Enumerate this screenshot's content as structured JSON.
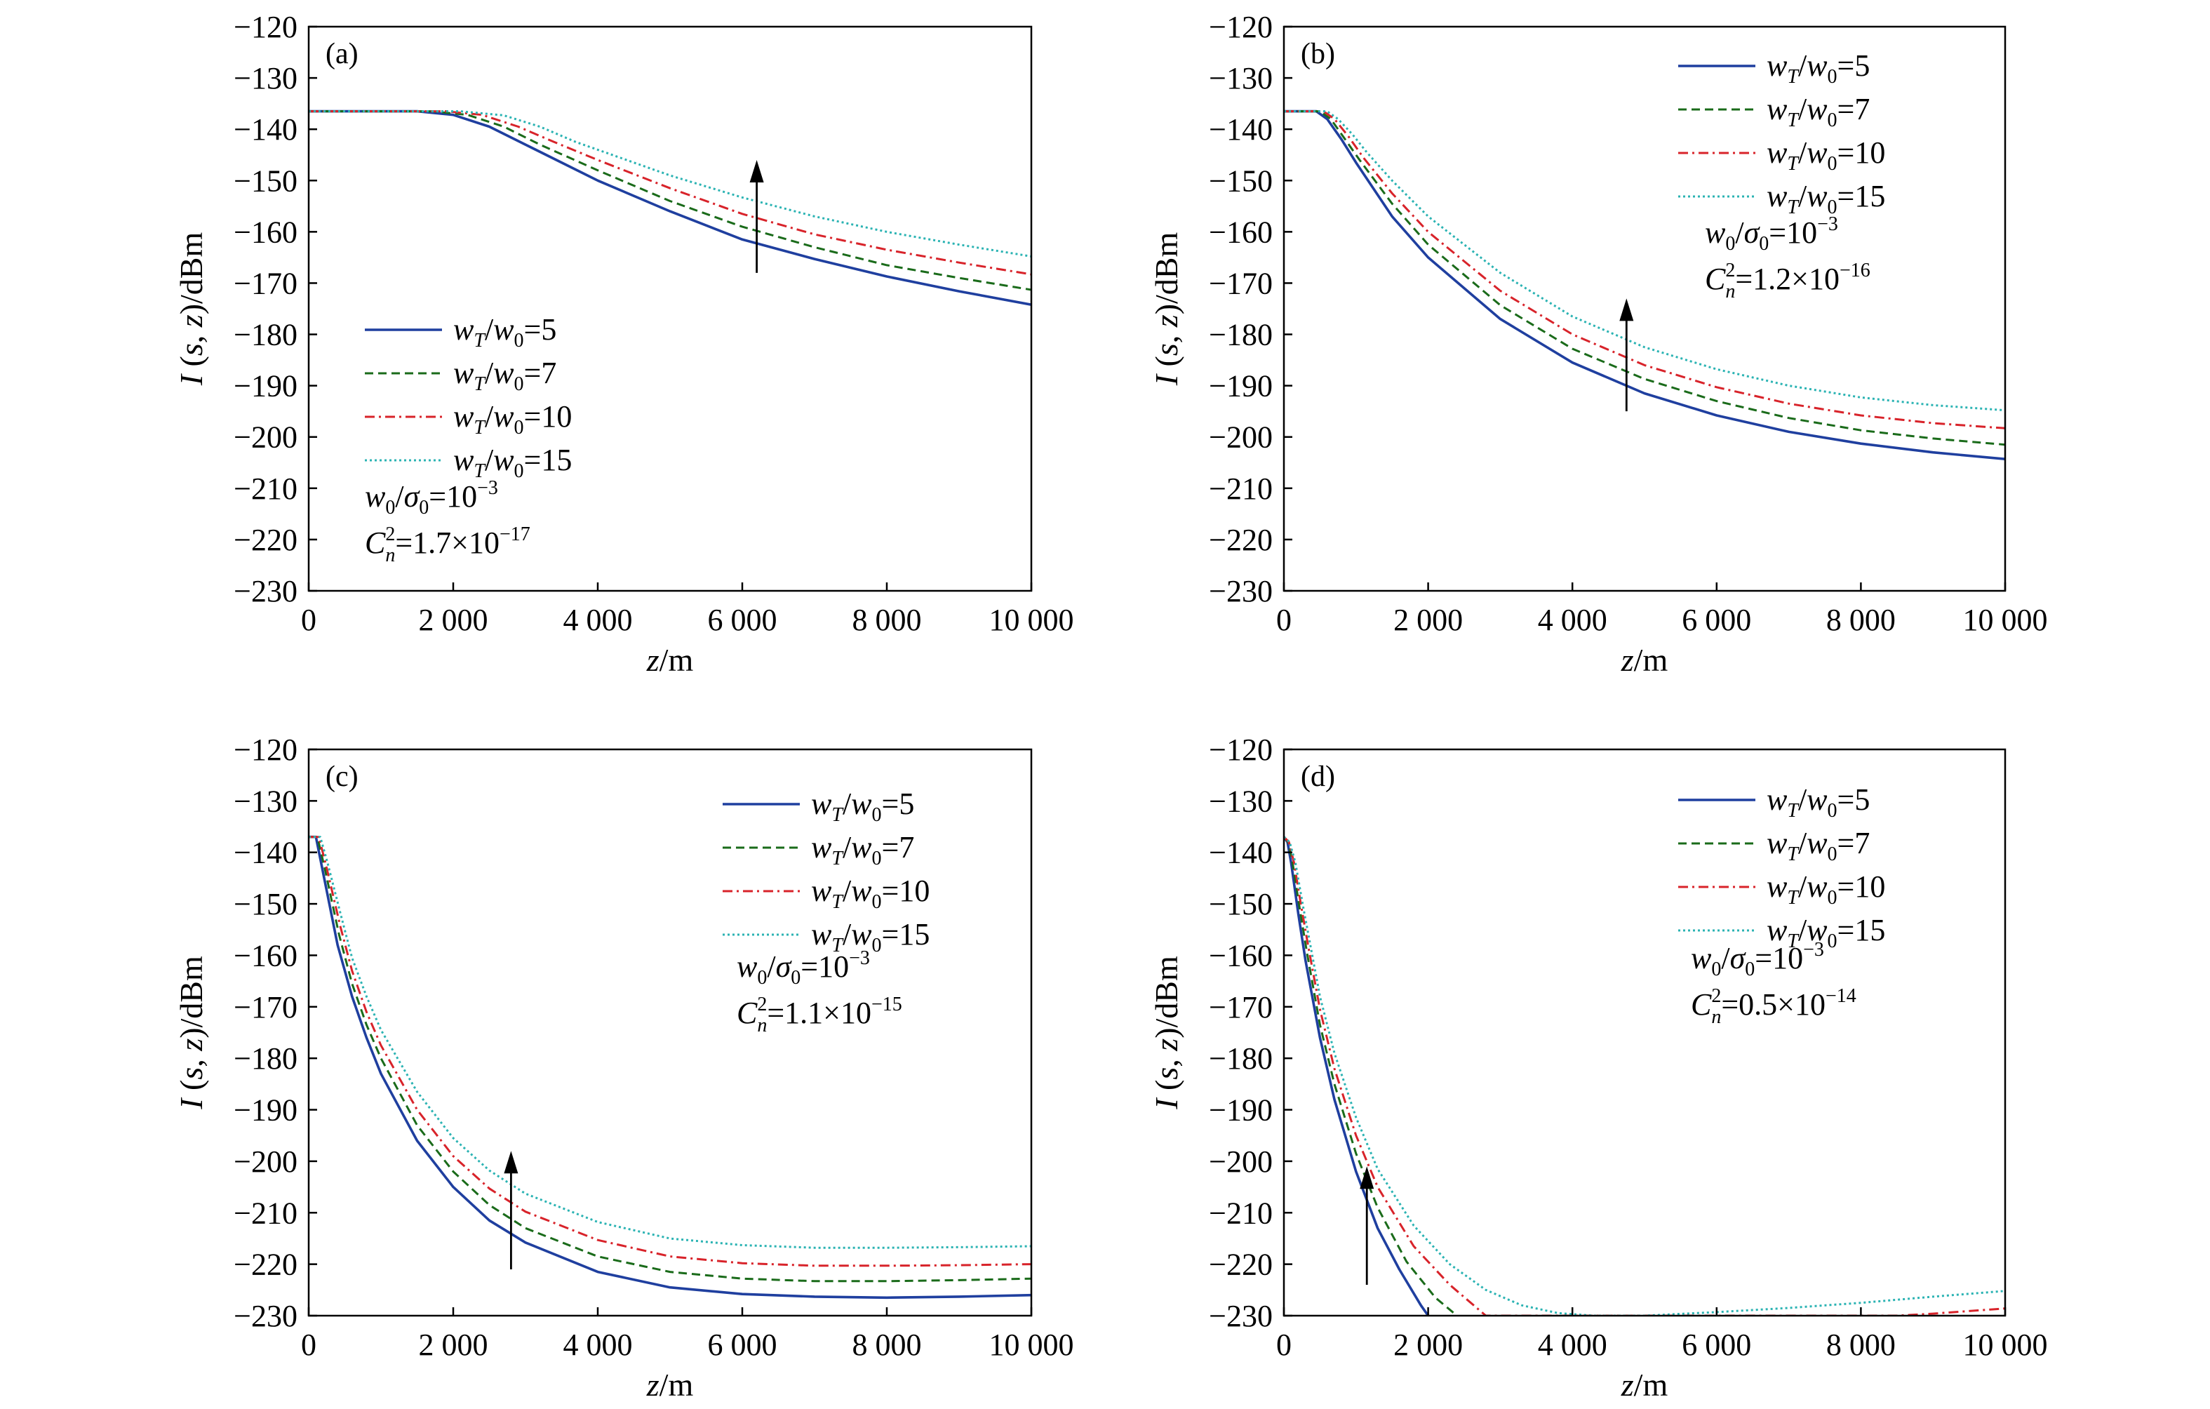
{
  "colors": {
    "s5": "#1f3f9f",
    "s7": "#1a6b1a",
    "s10": "#d8232a",
    "s15": "#2bb3b3"
  },
  "chart_data": [
    {
      "type": "line",
      "panel_label": "(a)",
      "xlabel_var": "z",
      "xlabel_unit": "/m",
      "ylabel_var": "I",
      "ylabel_args": "(s, z)",
      "ylabel_unit": "/dBm",
      "xlim": [
        0,
        10000
      ],
      "ylim": [
        -230,
        -120
      ],
      "xticks": [
        0,
        2000,
        4000,
        6000,
        8000,
        10000
      ],
      "xticklabels": [
        "0",
        "2 000",
        "4 000",
        "6 000",
        "8 000",
        "10 000"
      ],
      "yticks": [
        -120,
        -130,
        -140,
        -150,
        -160,
        -170,
        -180,
        -190,
        -200,
        -210,
        -220,
        -230
      ],
      "yticklabels": [
        "−120",
        "−130",
        "−140",
        "−150",
        "−160",
        "−170",
        "−180",
        "−190",
        "−200",
        "−210",
        "−220",
        "−230"
      ],
      "legend_position": "middle-left",
      "params": {
        "line1": "w0/σ0=10⁻³",
        "line2": "Cn²=1.7×10⁻¹⁷"
      },
      "arrow": {
        "x": 6200,
        "y_from": -168,
        "y_to": -146
      },
      "series": [
        {
          "name": "wT/w0=5",
          "style": "solid",
          "color_key": "s5",
          "x": [
            0,
            1500,
            2000,
            2500,
            3000,
            4000,
            5000,
            6000,
            7000,
            8000,
            9000,
            10000
          ],
          "y": [
            -136.5,
            -136.5,
            -137.2,
            -139.5,
            -143,
            -150,
            -156,
            -161.5,
            -165.3,
            -168.7,
            -171.6,
            -174.2
          ]
        },
        {
          "name": "wT/w0=7",
          "style": "dash",
          "color_key": "s7",
          "x": [
            0,
            1700,
            2200,
            2700,
            3200,
            4000,
            5000,
            6000,
            7000,
            8000,
            9000,
            10000
          ],
          "y": [
            -136.5,
            -136.5,
            -137.2,
            -139.5,
            -143,
            -148,
            -154,
            -159,
            -163,
            -166.5,
            -169,
            -171.3
          ]
        },
        {
          "name": "wT/w0=10",
          "style": "dashdot",
          "color_key": "s10",
          "x": [
            0,
            1900,
            2400,
            2900,
            3400,
            4000,
            5000,
            6000,
            7000,
            8000,
            9000,
            10000
          ],
          "y": [
            -136.5,
            -136.5,
            -137.2,
            -139.5,
            -142.5,
            -146,
            -151.5,
            -156.5,
            -160.5,
            -163.5,
            -166,
            -168.3
          ]
        },
        {
          "name": "wT/w0=15",
          "style": "dot",
          "color_key": "s15",
          "x": [
            0,
            2100,
            2700,
            3200,
            3700,
            4000,
            5000,
            6000,
            7000,
            8000,
            9000,
            10000
          ],
          "y": [
            -136.5,
            -136.5,
            -137.3,
            -139.5,
            -142.5,
            -144,
            -149,
            -153.3,
            -157,
            -160,
            -162.5,
            -164.8
          ]
        }
      ]
    },
    {
      "type": "line",
      "panel_label": "(b)",
      "xlabel_var": "z",
      "xlabel_unit": "/m",
      "ylabel_var": "I",
      "ylabel_args": "(s, z)",
      "ylabel_unit": "/dBm",
      "xlim": [
        0,
        10000
      ],
      "ylim": [
        -230,
        -120
      ],
      "xticks": [
        0,
        2000,
        4000,
        6000,
        8000,
        10000
      ],
      "xticklabels": [
        "0",
        "2 000",
        "4 000",
        "6 000",
        "8 000",
        "10 000"
      ],
      "yticks": [
        -120,
        -130,
        -140,
        -150,
        -160,
        -170,
        -180,
        -190,
        -200,
        -210,
        -220,
        -230
      ],
      "yticklabels": [
        "−120",
        "−130",
        "−140",
        "−150",
        "−160",
        "−170",
        "−180",
        "−190",
        "−200",
        "−210",
        "−220",
        "−230"
      ],
      "legend_position": "top-right",
      "params": {
        "line1": "w0/σ0=10⁻³",
        "line2": "Cn²=1.2×10⁻¹⁶"
      },
      "arrow": {
        "x": 4750,
        "y_from": -195,
        "y_to": -173
      },
      "series": [
        {
          "name": "wT/w0=5",
          "style": "solid",
          "color_key": "s5",
          "x": [
            0,
            450,
            600,
            800,
            1000,
            1500,
            2000,
            3000,
            4000,
            5000,
            6000,
            7000,
            8000,
            9000,
            10000
          ],
          "y": [
            -136.5,
            -136.5,
            -138,
            -142,
            -146.5,
            -157,
            -165,
            -177,
            -185.5,
            -191.5,
            -195.8,
            -199,
            -201.3,
            -203,
            -204.3
          ]
        },
        {
          "name": "wT/w0=7",
          "style": "dash",
          "color_key": "s7",
          "x": [
            0,
            500,
            650,
            850,
            1050,
            1500,
            2000,
            3000,
            4000,
            5000,
            6000,
            7000,
            8000,
            9000,
            10000
          ],
          "y": [
            -136.5,
            -136.5,
            -138,
            -142,
            -146,
            -154.5,
            -162.5,
            -174.3,
            -182.8,
            -188.7,
            -193,
            -196.3,
            -198.7,
            -200.3,
            -201.5
          ]
        },
        {
          "name": "wT/w0=10",
          "style": "dashdot",
          "color_key": "s10",
          "x": [
            0,
            550,
            700,
            900,
            1100,
            1500,
            2000,
            3000,
            4000,
            5000,
            6000,
            7000,
            8000,
            9000,
            10000
          ],
          "y": [
            -136.5,
            -136.5,
            -138,
            -141.5,
            -145.5,
            -152.5,
            -160,
            -171.5,
            -180,
            -186,
            -190.3,
            -193.5,
            -195.8,
            -197.3,
            -198.3
          ]
        },
        {
          "name": "wT/w0=15",
          "style": "dot",
          "color_key": "s15",
          "x": [
            0,
            600,
            750,
            950,
            1150,
            1500,
            2000,
            3000,
            4000,
            5000,
            6000,
            7000,
            8000,
            9000,
            10000
          ],
          "y": [
            -136.5,
            -136.5,
            -138,
            -141,
            -144.5,
            -150,
            -157,
            -168,
            -176.5,
            -182.5,
            -186.8,
            -190,
            -192.3,
            -193.8,
            -194.8
          ]
        }
      ]
    },
    {
      "type": "line",
      "panel_label": "(c)",
      "xlabel_var": "z",
      "xlabel_unit": "/m",
      "ylabel_var": "I",
      "ylabel_args": "(s, z)",
      "ylabel_unit": "/dBm",
      "xlim": [
        0,
        10000
      ],
      "ylim": [
        -230,
        -120
      ],
      "xticks": [
        0,
        2000,
        4000,
        6000,
        8000,
        10000
      ],
      "xticklabels": [
        "0",
        "2 000",
        "4 000",
        "6 000",
        "8 000",
        "10 000"
      ],
      "yticks": [
        -120,
        -130,
        -140,
        -150,
        -160,
        -170,
        -180,
        -190,
        -200,
        -210,
        -220,
        -230
      ],
      "yticklabels": [
        "−120",
        "−130",
        "−140",
        "−150",
        "−160",
        "−170",
        "−180",
        "−190",
        "−200",
        "−210",
        "−220",
        "−230"
      ],
      "legend_position": "top-right",
      "params": {
        "line1": "w0/σ0=10⁻³",
        "line2": "Cn²=1.1×10⁻¹⁵"
      },
      "arrow": {
        "x": 2800,
        "y_from": -221,
        "y_to": -198
      },
      "series": [
        {
          "name": "wT/w0=5",
          "style": "solid",
          "color_key": "s5",
          "x": [
            0,
            100,
            200,
            300,
            400,
            600,
            800,
            1000,
            1500,
            2000,
            2500,
            3000,
            4000,
            5000,
            6000,
            7000,
            8000,
            9000,
            10000
          ],
          "y": [
            -137,
            -137,
            -144,
            -151,
            -158,
            -168,
            -176,
            -183,
            -196,
            -205,
            -211.5,
            -215.8,
            -221.5,
            -224.5,
            -225.8,
            -226.3,
            -226.5,
            -226.3,
            -226
          ]
        },
        {
          "name": "wT/w0=7",
          "style": "dash",
          "color_key": "s7",
          "x": [
            0,
            120,
            220,
            320,
            420,
            600,
            800,
            1000,
            1500,
            2000,
            2500,
            3000,
            4000,
            5000,
            6000,
            7000,
            8000,
            9000,
            10000
          ],
          "y": [
            -137,
            -137,
            -143,
            -149.5,
            -156,
            -165.5,
            -173.5,
            -180,
            -193,
            -202,
            -208.5,
            -213,
            -218.5,
            -221.5,
            -222.8,
            -223.3,
            -223.3,
            -223.1,
            -222.8
          ]
        },
        {
          "name": "wT/w0=10",
          "style": "dashdot",
          "color_key": "s10",
          "x": [
            0,
            140,
            240,
            340,
            440,
            600,
            800,
            1000,
            1500,
            2000,
            2500,
            3000,
            4000,
            5000,
            6000,
            7000,
            8000,
            9000,
            10000
          ],
          "y": [
            -137,
            -137,
            -142.5,
            -148.5,
            -154.5,
            -163,
            -171,
            -177.5,
            -190,
            -199,
            -205.3,
            -209.8,
            -215.3,
            -218.5,
            -219.8,
            -220.3,
            -220.3,
            -220.2,
            -220
          ]
        },
        {
          "name": "wT/w0=15",
          "style": "dot",
          "color_key": "s15",
          "x": [
            0,
            160,
            260,
            360,
            460,
            600,
            800,
            1000,
            1500,
            2000,
            2500,
            3000,
            4000,
            5000,
            6000,
            7000,
            8000,
            9000,
            10000
          ],
          "y": [
            -137,
            -137,
            -142,
            -147.5,
            -153,
            -160.5,
            -168,
            -174.5,
            -186.5,
            -195.5,
            -201.8,
            -206.3,
            -211.8,
            -215,
            -216.3,
            -216.8,
            -216.8,
            -216.7,
            -216.5
          ]
        }
      ]
    },
    {
      "type": "line",
      "panel_label": "(d)",
      "xlabel_var": "z",
      "xlabel_unit": "/m",
      "ylabel_var": "I",
      "ylabel_args": "(s, z)",
      "ylabel_unit": "/dBm",
      "xlim": [
        0,
        10000
      ],
      "ylim": [
        -230,
        -120
      ],
      "xticks": [
        0,
        2000,
        4000,
        6000,
        8000,
        10000
      ],
      "xticklabels": [
        "0",
        "2 000",
        "4 000",
        "6 000",
        "8 000",
        "10 000"
      ],
      "yticks": [
        -120,
        -130,
        -140,
        -150,
        -160,
        -170,
        -180,
        -190,
        -200,
        -210,
        -220,
        -230
      ],
      "yticklabels": [
        "−120",
        "−130",
        "−140",
        "−150",
        "−160",
        "−170",
        "−180",
        "−190",
        "−200",
        "−210",
        "−220",
        "−230"
      ],
      "legend_position": "top-right",
      "params": {
        "line1": "w0/σ0=10⁻³",
        "line2": "Cn²=0.5×10⁻¹⁴"
      },
      "arrow": {
        "x": 1150,
        "y_from": -224,
        "y_to": -201
      },
      "series": [
        {
          "name": "wT/w0=5",
          "style": "solid",
          "color_key": "s5",
          "x": [
            0,
            50,
            100,
            200,
            300,
            500,
            700,
            1000,
            1300,
            1600,
            1900,
            2000
          ],
          "y": [
            -137,
            -138,
            -142,
            -152,
            -161,
            -176,
            -188,
            -202,
            -213,
            -221,
            -228,
            -230
          ]
        },
        {
          "name": "wT/w0=7",
          "style": "dash",
          "color_key": "s7",
          "x": [
            0,
            60,
            120,
            220,
            320,
            500,
            700,
            1000,
            1300,
            1700,
            2100,
            2400
          ],
          "y": [
            -137,
            -138,
            -142,
            -151,
            -159.5,
            -173.5,
            -185,
            -198.5,
            -209,
            -219.5,
            -226.5,
            -230
          ]
        },
        {
          "name": "wT/w0=10",
          "style": "dashdot",
          "color_key": "s10",
          "x": [
            0,
            70,
            140,
            240,
            340,
            500,
            700,
            1000,
            1300,
            1800,
            2300,
            2800,
            7500,
            8500,
            9000,
            9500,
            10000
          ],
          "y": [
            -137,
            -138,
            -142,
            -150.5,
            -158.5,
            -170.5,
            -182,
            -195,
            -205,
            -216.5,
            -224,
            -230,
            -230,
            -230,
            -229.6,
            -229.1,
            -228.6
          ]
        },
        {
          "name": "wT/w0=15",
          "style": "dot",
          "color_key": "s15",
          "x": [
            0,
            80,
            160,
            260,
            360,
            500,
            700,
            1000,
            1300,
            1800,
            2300,
            2800,
            3300,
            3800,
            4300,
            5000,
            6000,
            7000,
            8000,
            9000,
            10000
          ],
          "y": [
            -137,
            -138,
            -142,
            -150,
            -157.5,
            -168,
            -179,
            -191.5,
            -201.5,
            -212.5,
            -220,
            -225,
            -228,
            -229.5,
            -230,
            -230,
            -229.3,
            -228.5,
            -227.5,
            -226.3,
            -225.2
          ]
        }
      ]
    }
  ]
}
